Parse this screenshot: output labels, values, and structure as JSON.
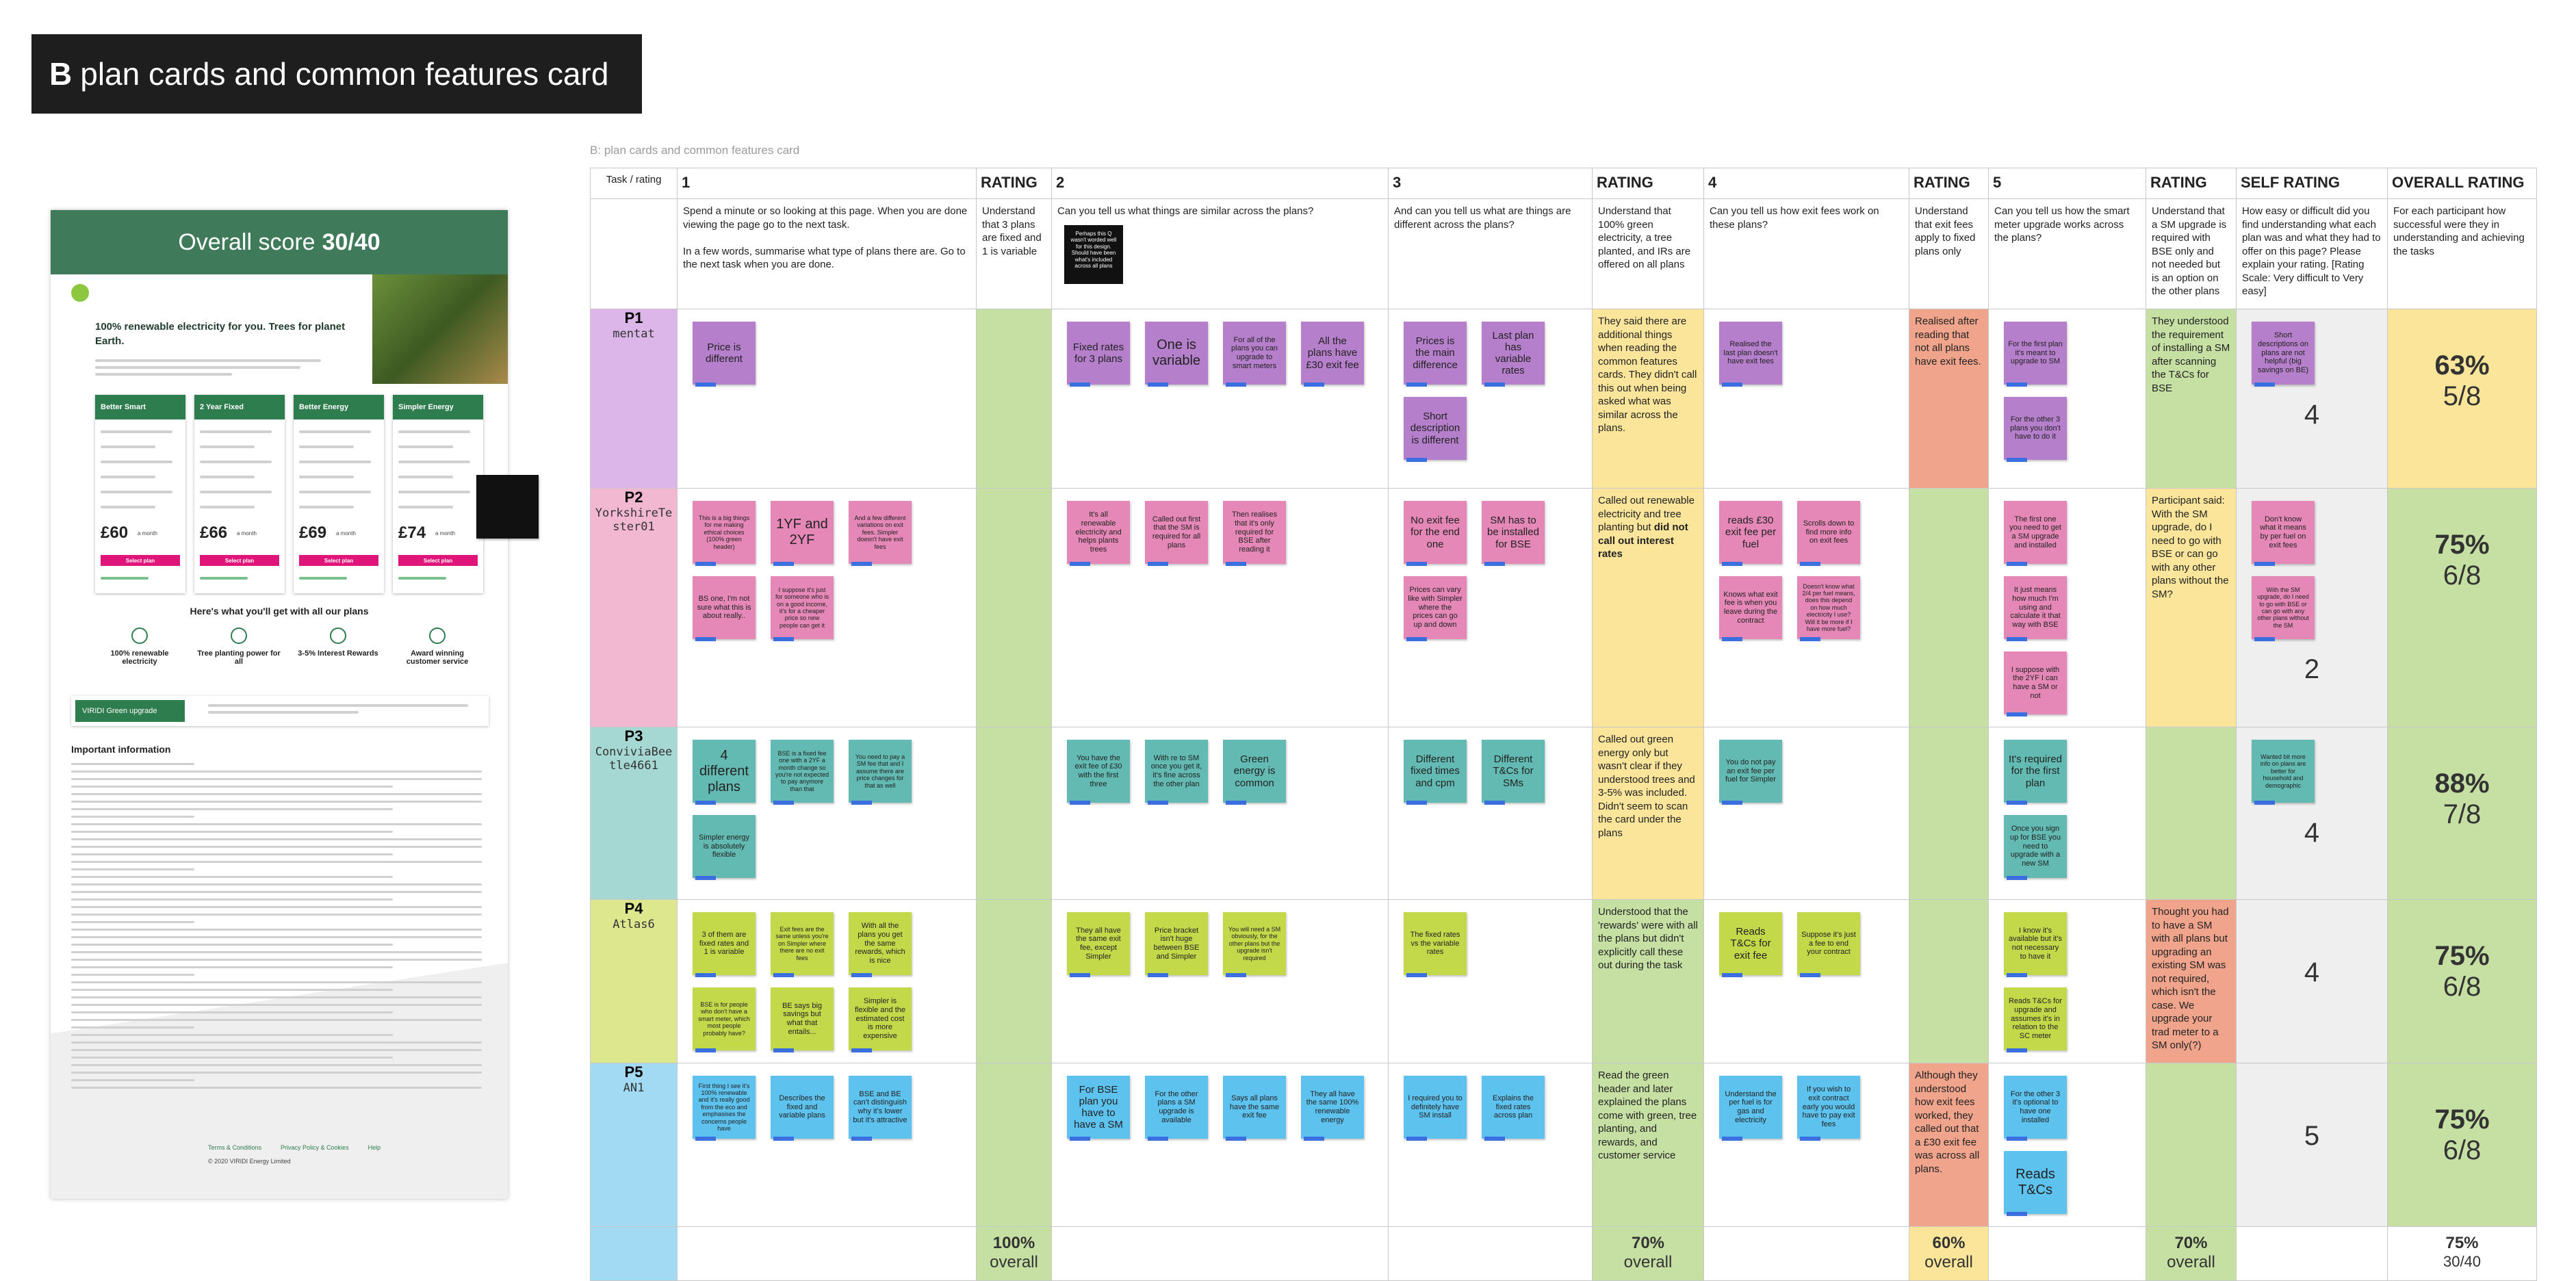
{
  "title": {
    "letter": "B",
    "text": "plan cards and common features card"
  },
  "mockup": {
    "header_label": "Overall score",
    "header_score": "30/40",
    "hero_title": "100% renewable electricity for you. Trees for planet Earth.",
    "plans": [
      {
        "name": "Better Smart",
        "price": "£60"
      },
      {
        "name": "2 Year Fixed",
        "price": "£66"
      },
      {
        "name": "Better Energy",
        "price": "£69"
      },
      {
        "name": "Simpler Energy",
        "price": "£74"
      }
    ],
    "per": "a month",
    "button": "Select plan",
    "features_title": "Here's what you'll get with all our plans",
    "features": [
      "100% renewable electricity",
      "Tree planting power for all",
      "3-5% Interest Rewards",
      "Award winning customer service"
    ],
    "upgrade": "VIRIDI Green upgrade",
    "info_title": "Important information",
    "footer": [
      "Terms & Conditions",
      "Privacy Policy & Cookies",
      "Help"
    ],
    "copyright": "© 2020 VIRIDI Energy Limited"
  },
  "board": {
    "caption": "B: plan cards and common features card",
    "headers": [
      "Task / rating",
      "1",
      "RATING",
      "2",
      "3",
      "RATING",
      "4",
      "RATING",
      "5",
      "RATING",
      "SELF RATING",
      "OVERALL RATING"
    ],
    "prompts": [
      {},
      {
        "text": "Spend a minute or so looking at this page. When you are done viewing the page go to the next task.\n\nIn a few words, summarise what type of plans there are. Go to the next task when you are done."
      },
      {
        "text": "Understand that 3 plans are fixed and 1 is variable"
      },
      {
        "text": "Can you tell us what things are similar across the plans?",
        "dark_note": "Perhaps this Q wasn't worded well for this design. Should have been what's included across all plans"
      },
      {
        "text": "And can you tell us what are things are different across the plans?"
      },
      {
        "text": "Understand that 100% green electricity, a tree planted, and IRs are offered on all plans"
      },
      {
        "text": "Can you tell us how exit fees work on these plans?"
      },
      {
        "text": "Understand that exit fees apply to fixed plans only"
      },
      {
        "text": "Can you tell us how the smart meter upgrade works across the plans?"
      },
      {
        "text": "Understand that a SM upgrade is required with BSE only and not needed but is an option on the other plans"
      },
      {
        "text": "How easy or difficult did you find understanding what each plan was and what they had to offer on this page? Please explain your rating. [Rating Scale: Very difficult to Very easy]"
      },
      {
        "text": "For each participant how successful were they in understanding and achieving the tasks"
      }
    ],
    "rows": [
      {
        "id": "P1",
        "name": "mentat",
        "color": "#dcb6e8",
        "note_color": "#b57fcb",
        "cells": [
          {
            "notes": [
              "Price is different"
            ]
          },
          {
            "color": "#c6e0a4"
          },
          {
            "notes": [
              "Fixed rates for 3 plans",
              "One is variable",
              "For all of the plans you can upgrade to smart meters",
              "All the plans have £30 exit fee"
            ]
          },
          {
            "notes": [
              "Prices is the main difference",
              "Last plan has variable rates",
              "Short description is different"
            ]
          },
          {
            "color": "#fae59a",
            "text": "They said there are additional things when reading the common features cards. They didn't call this out when being asked what was similar across the plans."
          },
          {
            "notes": [
              "Realised the last plan doesn't have exit fees"
            ]
          },
          {
            "color": "#f1a48c",
            "text": "Realised after reading that not all plans have exit fees."
          },
          {
            "notes": [
              "For the first plan it's meant to upgrade to SM",
              "For the other 3 plans you don't have to do it"
            ]
          },
          {
            "color": "#c6e0a4",
            "text": "They understood the requirement of installing a SM after scanning the T&Cs for BSE"
          },
          {
            "color": "#efefef",
            "notes": [
              "Short descriptions on plans are not helpful (big savings on BE)"
            ],
            "score": "4"
          },
          {
            "color": "#fae59a",
            "percent": "63%",
            "score": "5/8"
          }
        ]
      },
      {
        "id": "P2",
        "name": "YorkshireTester01",
        "color": "#f2b8d2",
        "note_color": "#e588b7",
        "cells": [
          {
            "notes": [
              "This is a big things for me making ethical choices (100% green header)",
              "1YF and 2YF",
              "And a few different variations on exit fees. Simpler doesn't have exit fees",
              "BS one, I'm not sure what this is about really..",
              "I suppose it's just for someone who is on a good income, it's for a cheaper price so new people can get it"
            ]
          },
          {
            "color": "#c6e0a4"
          },
          {
            "notes": [
              "It's all renewable electricity and helps plants trees",
              "Called out first that the SM is required for all plans",
              "Then realises that it's only required for BSE after reading it"
            ]
          },
          {
            "notes": [
              "No exit fee for the end one",
              "SM has to be installed for BSE",
              "Prices can vary like with Simpler where the prices can go up and down"
            ]
          },
          {
            "color": "#fae59a",
            "text": "Called out renewable electricity and tree planting but ",
            "bold": "did not call out interest rates"
          },
          {
            "notes": [
              "reads £30 exit fee per fuel",
              "Scrolls down to find more info on exit fees",
              "Knows what exit fee is when you leave during the contract",
              "Doesn't know what 2/4 per fuel means, does this depend on how much electricity I use? Will it be more if I have more fuel?"
            ]
          },
          {
            "color": "#c6e0a4"
          },
          {
            "notes": [
              "The first one you need to get a SM upgrade and installed",
              "It just means how much I'm using and calculate it that way with BSE",
              "I suppose with the 2YF I can have a SM or not"
            ]
          },
          {
            "color": "#fae59a",
            "text": "Participant said: With the SM upgrade, do I need to go with BSE or can go with any other plans without the SM?"
          },
          {
            "color": "#efefef",
            "notes": [
              "Don't know what it means by per fuel on exit fees",
              "With the SM upgrade, do I need to go with BSE or can go with any other plans without the SM"
            ],
            "score": "2"
          },
          {
            "color": "#c6e0a4",
            "percent": "75%",
            "score": "6/8"
          }
        ]
      },
      {
        "id": "P3",
        "name": "ConviviaBeetle4661",
        "color": "#a6d8d3",
        "note_color": "#62bab2",
        "cells": [
          {
            "notes": [
              "4 different plans",
              "BSE is a fixed fee one with a 2YF a month change so you're not expected to pay anymore than that",
              "You need to pay a SM fee that and I assume there are price changes for that as well",
              "Simpler energy is absolutely flexible"
            ]
          },
          {
            "color": "#c6e0a4"
          },
          {
            "notes": [
              "You have the exit fee of £30 with the first three",
              "With re to SM once you get it, it's fine across the other plan",
              "Green energy is common"
            ]
          },
          {
            "notes": [
              "Different fixed times and cpm",
              "Different T&Cs for SMs"
            ]
          },
          {
            "color": "#fae59a",
            "text": "Called out green energy only but wasn't clear if they understood trees and 3-5% was included. Didn't seem to scan the card under the plans"
          },
          {
            "notes": [
              "You do not pay an exit fee per fuel for Simpler"
            ]
          },
          {
            "color": "#c6e0a4"
          },
          {
            "notes": [
              "It's required for the first plan",
              "Once you sign up for BSE you need to upgrade with a new SM"
            ]
          },
          {
            "color": "#c6e0a4"
          },
          {
            "color": "#efefef",
            "notes": [
              "Wanted bit more info on plans are better for household and demographic"
            ],
            "score": "4"
          },
          {
            "color": "#c6e0a4",
            "percent": "88%",
            "score": "7/8"
          }
        ]
      },
      {
        "id": "P4",
        "name": "Atlas6",
        "color": "#dde78e",
        "note_color": "#c4d94a",
        "cells": [
          {
            "notes": [
              "3 of them are fixed rates and 1 is variable",
              "Exit fees are the same unless you're on Simpler where there are no exit fees",
              "With all the plans you get the same rewards, which is nice",
              "BSE is for people who don't have a smart meter, which most people probably have?",
              "BE says big savings but what that entails...",
              "Simpler is flexible and the estimated cost is more expensive"
            ]
          },
          {
            "color": "#c6e0a4"
          },
          {
            "notes": [
              "They all have the same exit fee, except Simpler",
              "Price bracket isn't huge between BSE and Simpler",
              "You will need a SM obviously, for the other plans but the upgrade isn't required"
            ]
          },
          {
            "notes": [
              "The fixed rates vs the variable rates"
            ]
          },
          {
            "color": "#c6e0a4",
            "text": "Understood that the 'rewards' were with all the plans but didn't explicitly call these out during the task"
          },
          {
            "notes": [
              "Reads T&Cs for exit fee",
              "Suppose it's just a fee to end your contract"
            ]
          },
          {
            "color": "#c6e0a4"
          },
          {
            "notes": [
              "I know it's available but it's not necessary to have it",
              "Reads T&Cs for upgrade and assumes it's in relation to the SC meter"
            ]
          },
          {
            "color": "#f1a48c",
            "text": "Thought you had to have a SM with all plans but upgrading an existing SM was not required, which isn't the case. We upgrade your trad meter to a SM only(?)"
          },
          {
            "color": "#efefef",
            "score": "4"
          },
          {
            "color": "#c6e0a4",
            "percent": "75%",
            "score": "6/8"
          }
        ]
      },
      {
        "id": "P5",
        "name": "AN1",
        "color": "#a3daf3",
        "note_color": "#5ec2ef",
        "cells": [
          {
            "notes": [
              "First thing I see it's 100% renewable and it's really good from the eco and emphasises the concerns people have",
              "Describes the fixed and variable plans",
              "BSE and BE can't distinguish why it's lower but it's attractive"
            ]
          },
          {
            "color": "#c6e0a4"
          },
          {
            "notes": [
              "For BSE plan you have to have a SM",
              "For the other plans a SM upgrade is available",
              "Says all plans have the same exit fee",
              "They all have the same 100% renewable energy"
            ]
          },
          {
            "notes": [
              "I required you to definitely have SM install",
              "Explains the fixed rates across plan"
            ]
          },
          {
            "color": "#c6e0a4",
            "text": "Read the green header and later explained the plans come with green, tree planting, and rewards, and customer service"
          },
          {
            "notes": [
              "Understand the per fuel is for gas and electricity",
              "If you wish to exit contract early you would have to pay exit fees"
            ]
          },
          {
            "color": "#f1a48c",
            "text": "Although they understood how exit fees worked, they called out that a £30 exit fee was across all plans."
          },
          {
            "notes": [
              "For the other 3 it's optional to have one installed",
              "Reads T&Cs"
            ]
          },
          {
            "color": "#c6e0a4"
          },
          {
            "color": "#efefef",
            "score": "5"
          },
          {
            "color": "#c6e0a4",
            "percent": "75%",
            "score": "6/8"
          }
        ]
      }
    ],
    "totals": [
      {
        "color": "#a3daf3"
      },
      {},
      {
        "color": "#c6e0a4",
        "percent": "100%",
        "label": "overall"
      },
      {},
      {},
      {
        "color": "#c6e0a4",
        "percent": "70%",
        "label": "overall"
      },
      {},
      {
        "color": "#fae59a",
        "percent": "60%",
        "label": "overall"
      },
      {},
      {
        "color": "#c6e0a4",
        "percent": "70%",
        "label": "overall"
      },
      {},
      {
        "percent": "75%",
        "score": "30/40"
      }
    ]
  }
}
